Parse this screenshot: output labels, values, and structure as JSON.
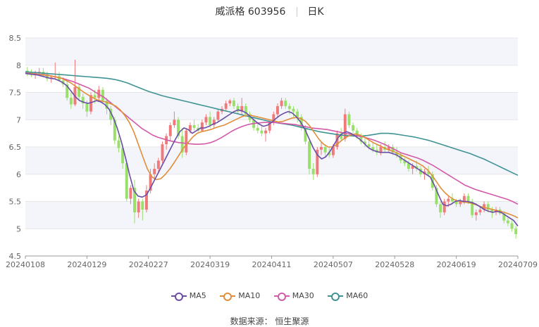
{
  "header": {
    "name_code": "威派格 603956",
    "period": "日K"
  },
  "source_text": "数据来源： 恒生聚源",
  "colors": {
    "up": "#f07a7a",
    "down": "#98e06a",
    "ma5": "#6a4ea6",
    "ma10": "#e08e3a",
    "ma30": "#d25aa8",
    "ma60": "#3f9393",
    "grid": "#e6e6e6",
    "band": "#f3f5fb"
  },
  "chart_data": {
    "type": "candlestick",
    "title": "威派格 603956 日K",
    "ylim": [
      4.5,
      8.5
    ],
    "yticks": [
      "8.5",
      "8",
      "7.5",
      "7",
      "6.5",
      "6",
      "5.5",
      "5",
      "4.5"
    ],
    "xticks": [
      "20240108",
      "20240129",
      "20240227",
      "20240319",
      "20240411",
      "20240507",
      "20240528",
      "20240619",
      "20240709"
    ],
    "legend": [
      "MA5",
      "MA10",
      "MA30",
      "MA60"
    ],
    "grid": true,
    "legend_position": "bottom",
    "candles_ohlc": [
      [
        7.9,
        7.97,
        7.8,
        7.85
      ],
      [
        7.85,
        7.92,
        7.78,
        7.82
      ],
      [
        7.82,
        7.9,
        7.75,
        7.86
      ],
      [
        7.86,
        7.95,
        7.8,
        7.88
      ],
      [
        7.88,
        7.95,
        7.8,
        7.83
      ],
      [
        7.83,
        7.88,
        7.7,
        7.75
      ],
      [
        7.75,
        7.82,
        7.68,
        7.78
      ],
      [
        7.78,
        8.05,
        7.75,
        7.8
      ],
      [
        7.8,
        7.88,
        7.7,
        7.72
      ],
      [
        7.72,
        7.78,
        7.6,
        7.65
      ],
      [
        7.65,
        7.7,
        7.35,
        7.4
      ],
      [
        7.4,
        7.5,
        7.2,
        7.28
      ],
      [
        7.28,
        8.1,
        7.25,
        7.6
      ],
      [
        7.6,
        7.65,
        7.35,
        7.42
      ],
      [
        7.42,
        7.48,
        7.2,
        7.3
      ],
      [
        7.3,
        7.35,
        7.05,
        7.15
      ],
      [
        7.15,
        7.5,
        7.1,
        7.45
      ],
      [
        7.45,
        7.55,
        7.3,
        7.4
      ],
      [
        7.4,
        7.62,
        7.35,
        7.55
      ],
      [
        7.55,
        7.6,
        7.3,
        7.35
      ],
      [
        7.35,
        7.4,
        7.1,
        7.2
      ],
      [
        7.2,
        7.25,
        6.9,
        7.0
      ],
      [
        7.0,
        7.05,
        6.55,
        6.62
      ],
      [
        6.62,
        6.7,
        6.4,
        6.48
      ],
      [
        6.48,
        6.55,
        6.1,
        6.2
      ],
      [
        6.2,
        6.25,
        5.5,
        5.55
      ],
      [
        5.55,
        5.8,
        5.45,
        5.75
      ],
      [
        5.75,
        5.9,
        5.1,
        5.3
      ],
      [
        5.3,
        5.55,
        5.2,
        5.5
      ],
      [
        5.5,
        5.55,
        5.15,
        5.35
      ],
      [
        5.35,
        5.8,
        5.3,
        5.7
      ],
      [
        5.7,
        6.1,
        5.65,
        6.0
      ],
      [
        6.0,
        6.2,
        5.9,
        6.1
      ],
      [
        6.1,
        6.3,
        6.05,
        6.25
      ],
      [
        6.25,
        6.6,
        6.2,
        6.55
      ],
      [
        6.55,
        6.75,
        6.45,
        6.7
      ],
      [
        6.7,
        6.95,
        6.6,
        6.9
      ],
      [
        6.9,
        7.15,
        6.85,
        7.0
      ],
      [
        7.0,
        7.05,
        6.65,
        6.7
      ],
      [
        6.7,
        6.85,
        6.3,
        6.4
      ],
      [
        6.4,
        6.85,
        6.35,
        6.8
      ],
      [
        6.8,
        6.95,
        6.75,
        6.9
      ],
      [
        6.9,
        7.0,
        6.8,
        6.85
      ],
      [
        6.85,
        6.92,
        6.75,
        6.8
      ],
      [
        6.8,
        7.0,
        6.78,
        6.95
      ],
      [
        6.95,
        7.1,
        6.9,
        7.05
      ],
      [
        7.05,
        7.15,
        6.85,
        6.9
      ],
      [
        6.9,
        7.05,
        6.85,
        7.0
      ],
      [
        7.0,
        7.2,
        6.95,
        7.15
      ],
      [
        7.15,
        7.25,
        7.1,
        7.2
      ],
      [
        7.2,
        7.35,
        7.15,
        7.3
      ],
      [
        7.3,
        7.38,
        7.25,
        7.35
      ],
      [
        7.35,
        7.4,
        7.2,
        7.25
      ],
      [
        7.25,
        7.3,
        7.1,
        7.15
      ],
      [
        7.15,
        7.4,
        7.1,
        7.25
      ],
      [
        7.25,
        7.3,
        7.05,
        7.1
      ],
      [
        7.1,
        7.15,
        6.95,
        7.0
      ],
      [
        7.0,
        7.05,
        6.8,
        6.85
      ],
      [
        6.85,
        6.95,
        6.75,
        6.8
      ],
      [
        6.8,
        6.9,
        6.7,
        6.75
      ],
      [
        6.75,
        6.85,
        6.6,
        6.8
      ],
      [
        6.8,
        7.0,
        6.75,
        6.95
      ],
      [
        6.95,
        7.15,
        6.9,
        7.1
      ],
      [
        7.1,
        7.3,
        7.05,
        7.25
      ],
      [
        7.25,
        7.4,
        7.2,
        7.35
      ],
      [
        7.35,
        7.4,
        7.2,
        7.25
      ],
      [
        7.25,
        7.3,
        7.1,
        7.2
      ],
      [
        7.2,
        7.25,
        7.05,
        7.15
      ],
      [
        7.15,
        7.2,
        6.95,
        7.05
      ],
      [
        7.05,
        7.1,
        6.8,
        6.85
      ],
      [
        6.85,
        6.9,
        6.55,
        6.6
      ],
      [
        6.6,
        6.65,
        6.0,
        6.1
      ],
      [
        6.1,
        6.2,
        5.9,
        6.0
      ],
      [
        6.0,
        6.5,
        5.95,
        6.45
      ],
      [
        6.45,
        6.6,
        6.35,
        6.5
      ],
      [
        6.5,
        6.55,
        6.3,
        6.4
      ],
      [
        6.4,
        6.5,
        6.3,
        6.35
      ],
      [
        6.35,
        6.55,
        6.3,
        6.5
      ],
      [
        6.5,
        6.8,
        6.45,
        6.75
      ],
      [
        6.75,
        6.85,
        6.6,
        6.65
      ],
      [
        6.65,
        7.2,
        6.6,
        7.1
      ],
      [
        7.1,
        7.15,
        6.85,
        6.9
      ],
      [
        6.9,
        6.95,
        6.75,
        6.8
      ],
      [
        6.8,
        6.85,
        6.65,
        6.7
      ],
      [
        6.7,
        6.75,
        6.55,
        6.6
      ],
      [
        6.6,
        6.7,
        6.5,
        6.55
      ],
      [
        6.55,
        6.65,
        6.45,
        6.5
      ],
      [
        6.5,
        6.6,
        6.4,
        6.45
      ],
      [
        6.45,
        6.55,
        6.35,
        6.4
      ],
      [
        6.4,
        6.55,
        6.35,
        6.5
      ],
      [
        6.5,
        6.6,
        6.4,
        6.45
      ],
      [
        6.45,
        6.55,
        6.4,
        6.5
      ],
      [
        6.5,
        6.55,
        6.35,
        6.4
      ],
      [
        6.4,
        6.5,
        6.3,
        6.35
      ],
      [
        6.35,
        6.4,
        6.2,
        6.25
      ],
      [
        6.25,
        6.3,
        6.15,
        6.2
      ],
      [
        6.2,
        6.25,
        6.05,
        6.1
      ],
      [
        6.1,
        6.2,
        6.0,
        6.15
      ],
      [
        6.15,
        6.25,
        6.05,
        6.1
      ],
      [
        6.1,
        6.15,
        5.95,
        6.0
      ],
      [
        6.0,
        6.1,
        5.9,
        6.05
      ],
      [
        6.05,
        6.15,
        5.95,
        6.0
      ],
      [
        6.0,
        6.05,
        5.7,
        5.75
      ],
      [
        5.75,
        5.8,
        5.4,
        5.45
      ],
      [
        5.45,
        5.5,
        5.2,
        5.3
      ],
      [
        5.3,
        5.55,
        5.25,
        5.5
      ],
      [
        5.5,
        5.6,
        5.4,
        5.55
      ],
      [
        5.55,
        5.65,
        5.45,
        5.5
      ],
      [
        5.5,
        5.55,
        5.4,
        5.45
      ],
      [
        5.45,
        5.55,
        5.4,
        5.5
      ],
      [
        5.5,
        5.65,
        5.45,
        5.6
      ],
      [
        5.6,
        5.65,
        5.45,
        5.5
      ],
      [
        5.5,
        5.55,
        5.2,
        5.25
      ],
      [
        5.25,
        5.35,
        5.15,
        5.3
      ],
      [
        5.3,
        5.4,
        5.25,
        5.35
      ],
      [
        5.35,
        5.5,
        5.3,
        5.45
      ],
      [
        5.45,
        5.5,
        5.3,
        5.35
      ],
      [
        5.35,
        5.4,
        5.2,
        5.3
      ],
      [
        5.3,
        5.4,
        5.25,
        5.35
      ],
      [
        5.35,
        5.4,
        5.25,
        5.28
      ],
      [
        5.28,
        5.32,
        5.1,
        5.15
      ],
      [
        5.15,
        5.2,
        5.05,
        5.1
      ],
      [
        5.1,
        5.15,
        4.95,
        5.0
      ],
      [
        5.0,
        5.05,
        4.82,
        4.9
      ]
    ],
    "ma5": [
      7.85,
      7.84,
      7.83,
      7.82,
      7.8,
      7.78,
      7.76,
      7.75,
      7.72,
      7.68,
      7.62,
      7.52,
      7.42,
      7.35,
      7.32,
      7.3,
      7.32,
      7.35,
      7.33,
      7.28,
      7.2,
      7.05,
      6.85,
      6.6,
      6.3,
      5.98,
      5.7,
      5.6,
      5.58,
      5.62,
      5.75,
      5.9,
      6.05,
      6.2,
      6.35,
      6.5,
      6.65,
      6.78,
      6.85,
      6.82,
      6.75,
      6.8,
      6.85,
      6.85,
      6.88,
      6.92,
      6.95,
      7.0,
      7.05,
      7.1,
      7.15,
      7.18,
      7.16,
      7.12,
      7.05,
      6.98,
      6.92,
      6.88,
      6.9,
      6.95,
      7.02,
      7.08,
      7.12,
      7.15,
      7.12,
      7.05,
      6.95,
      6.82,
      6.65,
      6.48,
      6.35,
      6.28,
      6.32,
      6.42,
      6.55,
      6.68,
      6.75,
      6.78,
      6.75,
      6.7,
      6.65,
      6.58,
      6.5,
      6.45,
      6.42,
      6.4,
      6.4,
      6.4,
      6.38,
      6.35,
      6.3,
      6.25,
      6.2,
      6.15,
      6.1,
      6.05,
      6.0,
      5.95,
      5.8,
      5.62,
      5.45,
      5.42,
      5.45,
      5.5,
      5.52,
      5.5,
      5.5,
      5.48,
      5.45,
      5.4,
      5.35,
      5.32,
      5.3,
      5.32,
      5.3,
      5.25,
      5.2,
      5.15,
      5.05
    ],
    "ma10": [
      7.85,
      7.85,
      7.84,
      7.83,
      7.82,
      7.81,
      7.8,
      7.78,
      7.76,
      7.72,
      7.68,
      7.62,
      7.56,
      7.5,
      7.45,
      7.4,
      7.36,
      7.34,
      7.32,
      7.29,
      7.25,
      7.18,
      7.08,
      6.95,
      6.78,
      6.55,
      6.32,
      6.1,
      5.95,
      5.9,
      5.92,
      6.0,
      6.1,
      6.22,
      6.35,
      6.48,
      6.58,
      6.68,
      6.75,
      6.78,
      6.8,
      6.82,
      6.85,
      6.88,
      6.9,
      6.94,
      6.98,
      7.02,
      7.06,
      7.08,
      7.08,
      7.06,
      7.04,
      7.02,
      7.0,
      6.98,
      6.96,
      6.97,
      7.0,
      7.03,
      7.04,
      7.02,
      6.97,
      6.88,
      6.76,
      6.64,
      6.55,
      6.5,
      6.5,
      6.55,
      6.62,
      6.68,
      6.72,
      6.74,
      6.72,
      6.68,
      6.63,
      6.58,
      6.54,
      6.5,
      6.46,
      6.43,
      6.4,
      6.36,
      6.32,
      6.28,
      6.24,
      6.2,
      6.15,
      6.08,
      5.98,
      5.86,
      5.74,
      5.65,
      5.58,
      5.53,
      5.5,
      5.49,
      5.48,
      5.46,
      5.43,
      5.4,
      5.38,
      5.36,
      5.34,
      5.32,
      5.3,
      5.27,
      5.24,
      5.2
    ],
    "ma30": [
      7.86,
      7.85,
      7.84,
      7.83,
      7.82,
      7.8,
      7.78,
      7.76,
      7.73,
      7.7,
      7.66,
      7.62,
      7.58,
      7.52,
      7.46,
      7.4,
      7.32,
      7.24,
      7.16,
      7.08,
      7.0,
      6.92,
      6.84,
      6.78,
      6.72,
      6.68,
      6.65,
      6.62,
      6.6,
      6.58,
      6.57,
      6.56,
      6.55,
      6.55,
      6.56,
      6.58,
      6.62,
      6.67,
      6.73,
      6.79,
      6.84,
      6.88,
      6.91,
      6.93,
      6.94,
      6.95,
      6.95,
      6.95,
      6.94,
      6.93,
      6.92,
      6.91,
      6.89,
      6.87,
      6.85,
      6.84,
      6.83,
      6.82,
      6.8,
      6.78,
      6.76,
      6.74,
      6.72,
      6.7,
      6.68,
      6.65,
      6.62,
      6.58,
      6.54,
      6.49,
      6.44,
      6.39,
      6.36,
      6.33,
      6.3,
      6.26,
      6.21,
      6.16,
      6.1,
      6.04,
      5.98,
      5.92,
      5.86,
      5.8,
      5.76,
      5.72,
      5.69,
      5.66,
      5.63,
      5.6,
      5.57,
      5.54,
      5.5,
      5.45
    ],
    "ma60": [
      7.88,
      7.87,
      7.86,
      7.85,
      7.84,
      7.83,
      7.82,
      7.81,
      7.8,
      7.79,
      7.78,
      7.77,
      7.76,
      7.74,
      7.71,
      7.67,
      7.62,
      7.57,
      7.52,
      7.48,
      7.44,
      7.41,
      7.38,
      7.35,
      7.32,
      7.29,
      7.26,
      7.23,
      7.2,
      7.17,
      7.14,
      7.11,
      7.08,
      7.05,
      7.02,
      6.99,
      6.96,
      6.94,
      6.92,
      6.9,
      6.87,
      6.84,
      6.81,
      6.78,
      6.76,
      6.74,
      6.72,
      6.71,
      6.7,
      6.7,
      6.71,
      6.73,
      6.75,
      6.75,
      6.74,
      6.72,
      6.7,
      6.68,
      6.65,
      6.62,
      6.58,
      6.54,
      6.5,
      6.46,
      6.42,
      6.38,
      6.33,
      6.28,
      6.22,
      6.16,
      6.1,
      6.04,
      5.98
    ]
  }
}
